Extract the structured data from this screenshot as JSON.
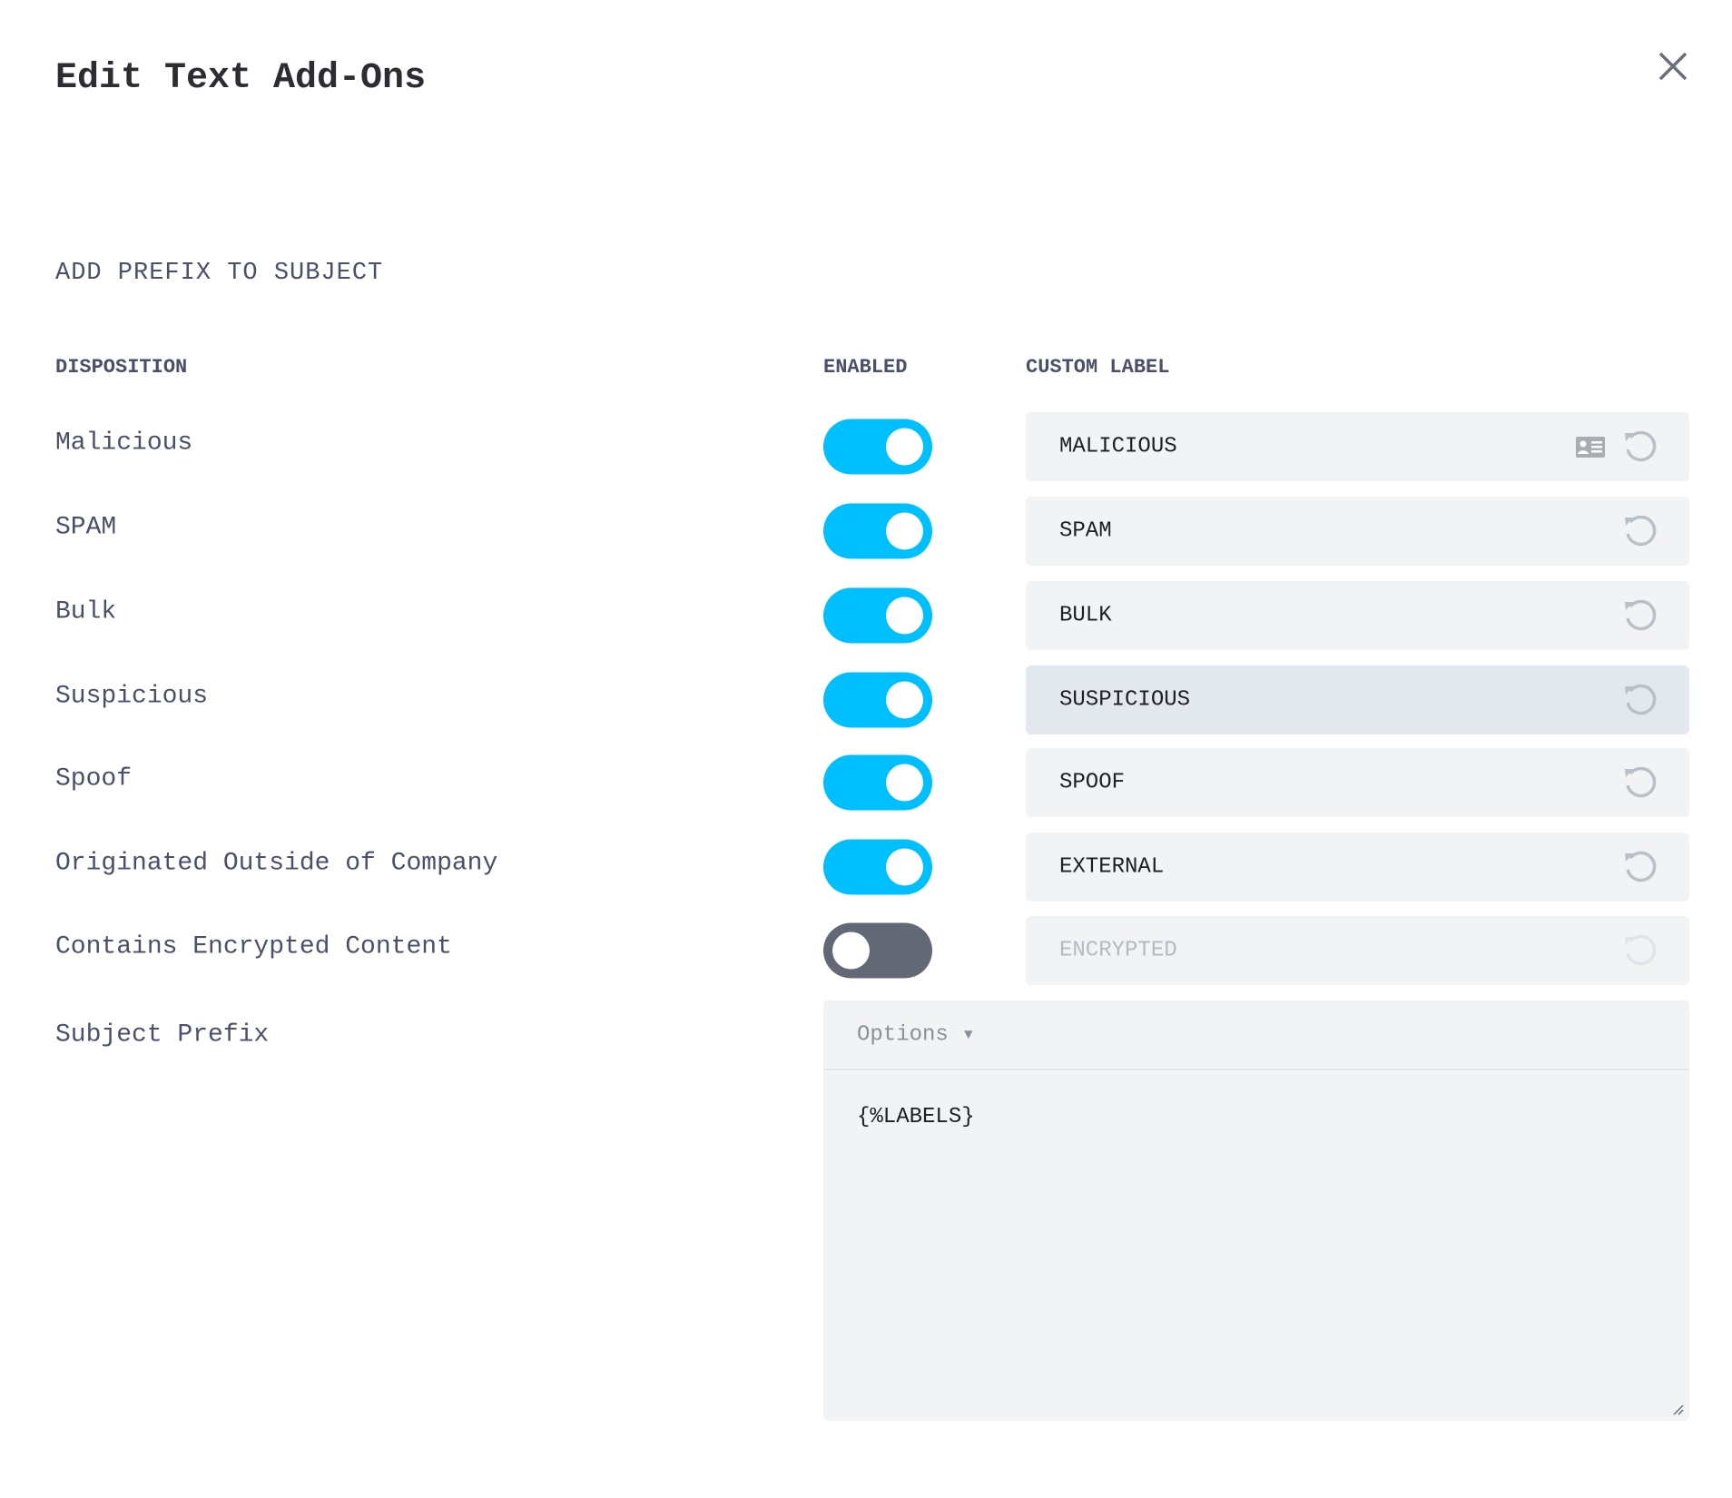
{
  "dialog": {
    "title": "Edit Text Add-Ons",
    "close_icon": "close-icon"
  },
  "section": {
    "title": "ADD PREFIX TO SUBJECT"
  },
  "headers": {
    "disposition": "DISPOSITION",
    "enabled": "ENABLED",
    "custom_label": "CUSTOM LABEL"
  },
  "colors": {
    "toggle_on": "#00bfff",
    "toggle_off": "#636876",
    "field_bg": "#f1f3f5"
  },
  "rows": [
    {
      "disposition": "Malicious",
      "enabled": true,
      "label": "MALICIOUS"
    },
    {
      "disposition": "SPAM",
      "enabled": true,
      "label": "SPAM"
    },
    {
      "disposition": "Bulk",
      "enabled": true,
      "label": "BULK"
    },
    {
      "disposition": "Suspicious",
      "enabled": true,
      "label": "SUSPICIOUS"
    },
    {
      "disposition": "Spoof",
      "enabled": true,
      "label": "SPOOF"
    },
    {
      "disposition": "Originated Outside of Company",
      "enabled": true,
      "label": "EXTERNAL"
    },
    {
      "disposition": "Contains Encrypted Content",
      "enabled": false,
      "label": "ENCRYPTED"
    }
  ],
  "subject_prefix": {
    "label": "Subject Prefix",
    "options_label": "Options",
    "value": "{%LABELS}"
  }
}
